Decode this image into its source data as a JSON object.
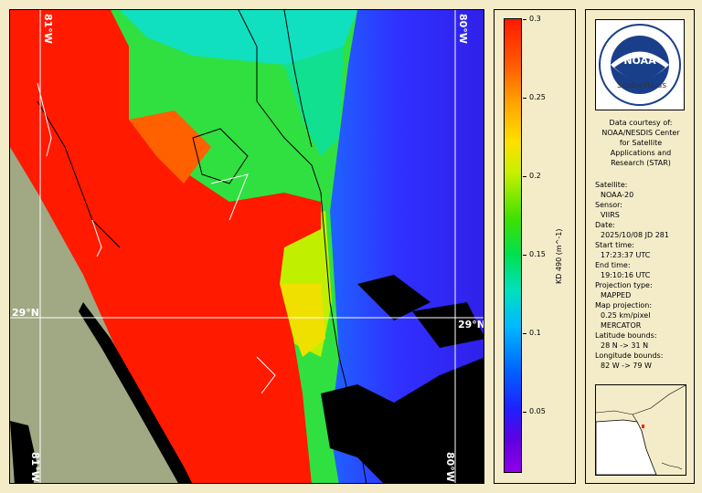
{
  "map": {
    "lat_label": "29°N",
    "lon_label_left": "81°W",
    "lon_label_right": "80°W"
  },
  "colorbar": {
    "title": "KD 490 (m^-1)",
    "ticks": [
      "0.3",
      "0.25",
      "0.2",
      "0.15",
      "0.1",
      "0.05"
    ]
  },
  "logo": {
    "text": "NOAA",
    "subtext": "ScubaViz.us"
  },
  "credit": {
    "line1": "Data courtesy of:",
    "line2": "NOAA/NESDIS Center",
    "line3": "for Satellite",
    "line4": "Applications and",
    "line5": "Research (STAR)"
  },
  "info": {
    "satellite_label": "Satellite:",
    "satellite": "NOAA-20",
    "sensor_label": "Sensor:",
    "sensor": "VIIRS",
    "date_label": "Date:",
    "date": "2025/10/08 JD 281",
    "start_label": "Start time:",
    "start": "17:23:37 UTC",
    "end_label": "End time:",
    "end": "19:10:16 UTC",
    "proj_label": "Projection type:",
    "proj": "MAPPED",
    "mapproj_label": "Map projection:",
    "mapproj1": "0.25 km/pixel",
    "mapproj2": "MERCATOR",
    "latb_label": "Latitude bounds:",
    "latb": "28 N -> 31 N",
    "lonb_label": "Longitude bounds:",
    "lonb": "82 W -> 79 W"
  }
}
